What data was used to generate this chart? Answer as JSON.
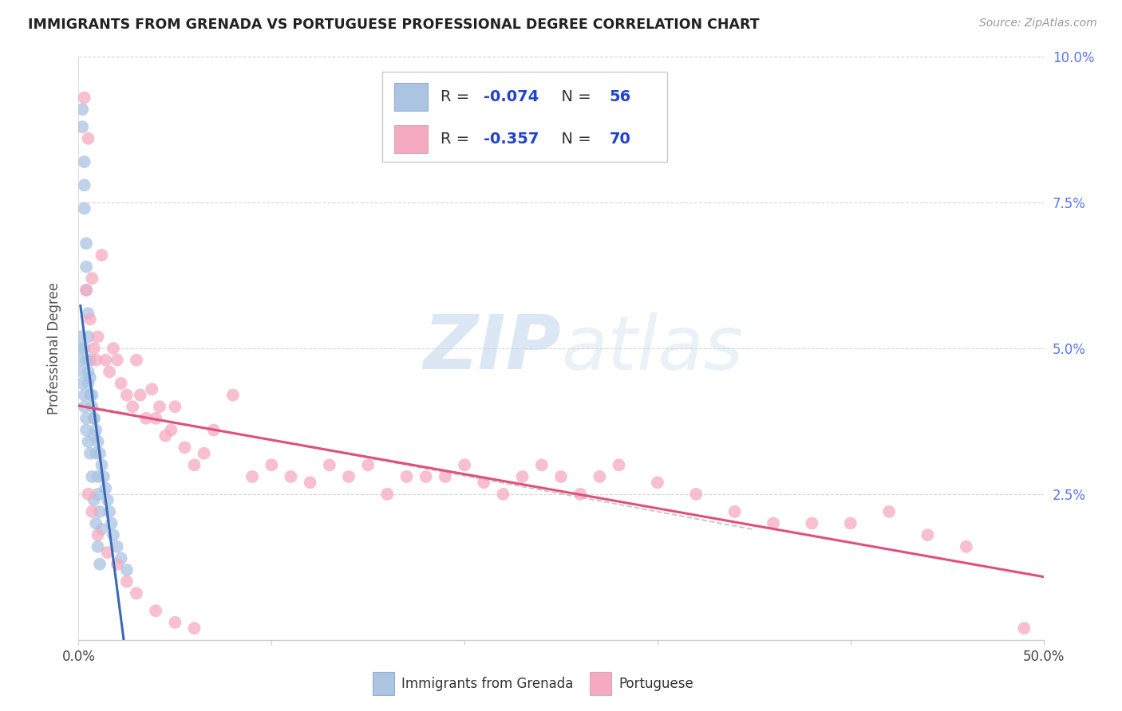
{
  "title": "IMMIGRANTS FROM GRENADA VS PORTUGUESE PROFESSIONAL DEGREE CORRELATION CHART",
  "source": "Source: ZipAtlas.com",
  "ylabel": "Professional Degree",
  "xlim": [
    0.0,
    0.5
  ],
  "ylim": [
    0.0,
    0.1
  ],
  "xtick_vals": [
    0.0,
    0.1,
    0.2,
    0.3,
    0.4,
    0.5
  ],
  "xtick_labels": [
    "0.0%",
    "",
    "",
    "",
    "",
    "50.0%"
  ],
  "ytick_vals": [
    0.0,
    0.025,
    0.05,
    0.075,
    0.1
  ],
  "ytick_labels_right": [
    "",
    "2.5%",
    "5.0%",
    "7.5%",
    "10.0%"
  ],
  "legend_label1": "Immigrants from Grenada",
  "legend_label2": "Portuguese",
  "R1": -0.074,
  "N1": 56,
  "R2": -0.357,
  "N2": 70,
  "color1": "#aac4e2",
  "color2": "#f5aabf",
  "line_color1": "#3a6ab5",
  "line_color2": "#e0507a",
  "dash_color": "#bbbbbb",
  "watermark_color": "#c5d8f0",
  "blue_x": [
    0.002,
    0.002,
    0.003,
    0.003,
    0.003,
    0.004,
    0.004,
    0.004,
    0.005,
    0.005,
    0.006,
    0.006,
    0.007,
    0.008,
    0.008,
    0.009,
    0.01,
    0.01,
    0.011,
    0.012,
    0.003,
    0.004,
    0.005,
    0.005,
    0.006,
    0.007,
    0.008,
    0.009,
    0.01,
    0.011,
    0.012,
    0.013,
    0.014,
    0.015,
    0.016,
    0.017,
    0.018,
    0.02,
    0.022,
    0.025,
    0.001,
    0.001,
    0.001,
    0.002,
    0.002,
    0.003,
    0.003,
    0.004,
    0.004,
    0.005,
    0.006,
    0.007,
    0.008,
    0.009,
    0.01,
    0.011
  ],
  "blue_y": [
    0.091,
    0.088,
    0.082,
    0.078,
    0.074,
    0.068,
    0.064,
    0.06,
    0.056,
    0.052,
    0.048,
    0.045,
    0.042,
    0.038,
    0.035,
    0.032,
    0.028,
    0.025,
    0.022,
    0.019,
    0.05,
    0.048,
    0.046,
    0.044,
    0.042,
    0.04,
    0.038,
    0.036,
    0.034,
    0.032,
    0.03,
    0.028,
    0.026,
    0.024,
    0.022,
    0.02,
    0.018,
    0.016,
    0.014,
    0.012,
    0.052,
    0.05,
    0.048,
    0.046,
    0.044,
    0.042,
    0.04,
    0.038,
    0.036,
    0.034,
    0.032,
    0.028,
    0.024,
    0.02,
    0.016,
    0.013
  ],
  "pink_x": [
    0.003,
    0.004,
    0.005,
    0.006,
    0.007,
    0.008,
    0.009,
    0.01,
    0.012,
    0.014,
    0.016,
    0.018,
    0.02,
    0.022,
    0.025,
    0.028,
    0.03,
    0.032,
    0.035,
    0.038,
    0.04,
    0.042,
    0.045,
    0.048,
    0.05,
    0.055,
    0.06,
    0.065,
    0.07,
    0.08,
    0.09,
    0.1,
    0.11,
    0.12,
    0.13,
    0.14,
    0.15,
    0.16,
    0.17,
    0.18,
    0.19,
    0.2,
    0.21,
    0.22,
    0.23,
    0.24,
    0.25,
    0.26,
    0.27,
    0.28,
    0.3,
    0.32,
    0.34,
    0.36,
    0.38,
    0.4,
    0.42,
    0.44,
    0.46,
    0.49,
    0.005,
    0.007,
    0.01,
    0.015,
    0.02,
    0.025,
    0.03,
    0.04,
    0.05,
    0.06
  ],
  "pink_y": [
    0.093,
    0.06,
    0.086,
    0.055,
    0.062,
    0.05,
    0.048,
    0.052,
    0.066,
    0.048,
    0.046,
    0.05,
    0.048,
    0.044,
    0.042,
    0.04,
    0.048,
    0.042,
    0.038,
    0.043,
    0.038,
    0.04,
    0.035,
    0.036,
    0.04,
    0.033,
    0.03,
    0.032,
    0.036,
    0.042,
    0.028,
    0.03,
    0.028,
    0.027,
    0.03,
    0.028,
    0.03,
    0.025,
    0.028,
    0.028,
    0.028,
    0.03,
    0.027,
    0.025,
    0.028,
    0.03,
    0.028,
    0.025,
    0.028,
    0.03,
    0.027,
    0.025,
    0.022,
    0.02,
    0.02,
    0.02,
    0.022,
    0.018,
    0.016,
    0.002,
    0.025,
    0.022,
    0.018,
    0.015,
    0.013,
    0.01,
    0.008,
    0.005,
    0.003,
    0.002
  ]
}
